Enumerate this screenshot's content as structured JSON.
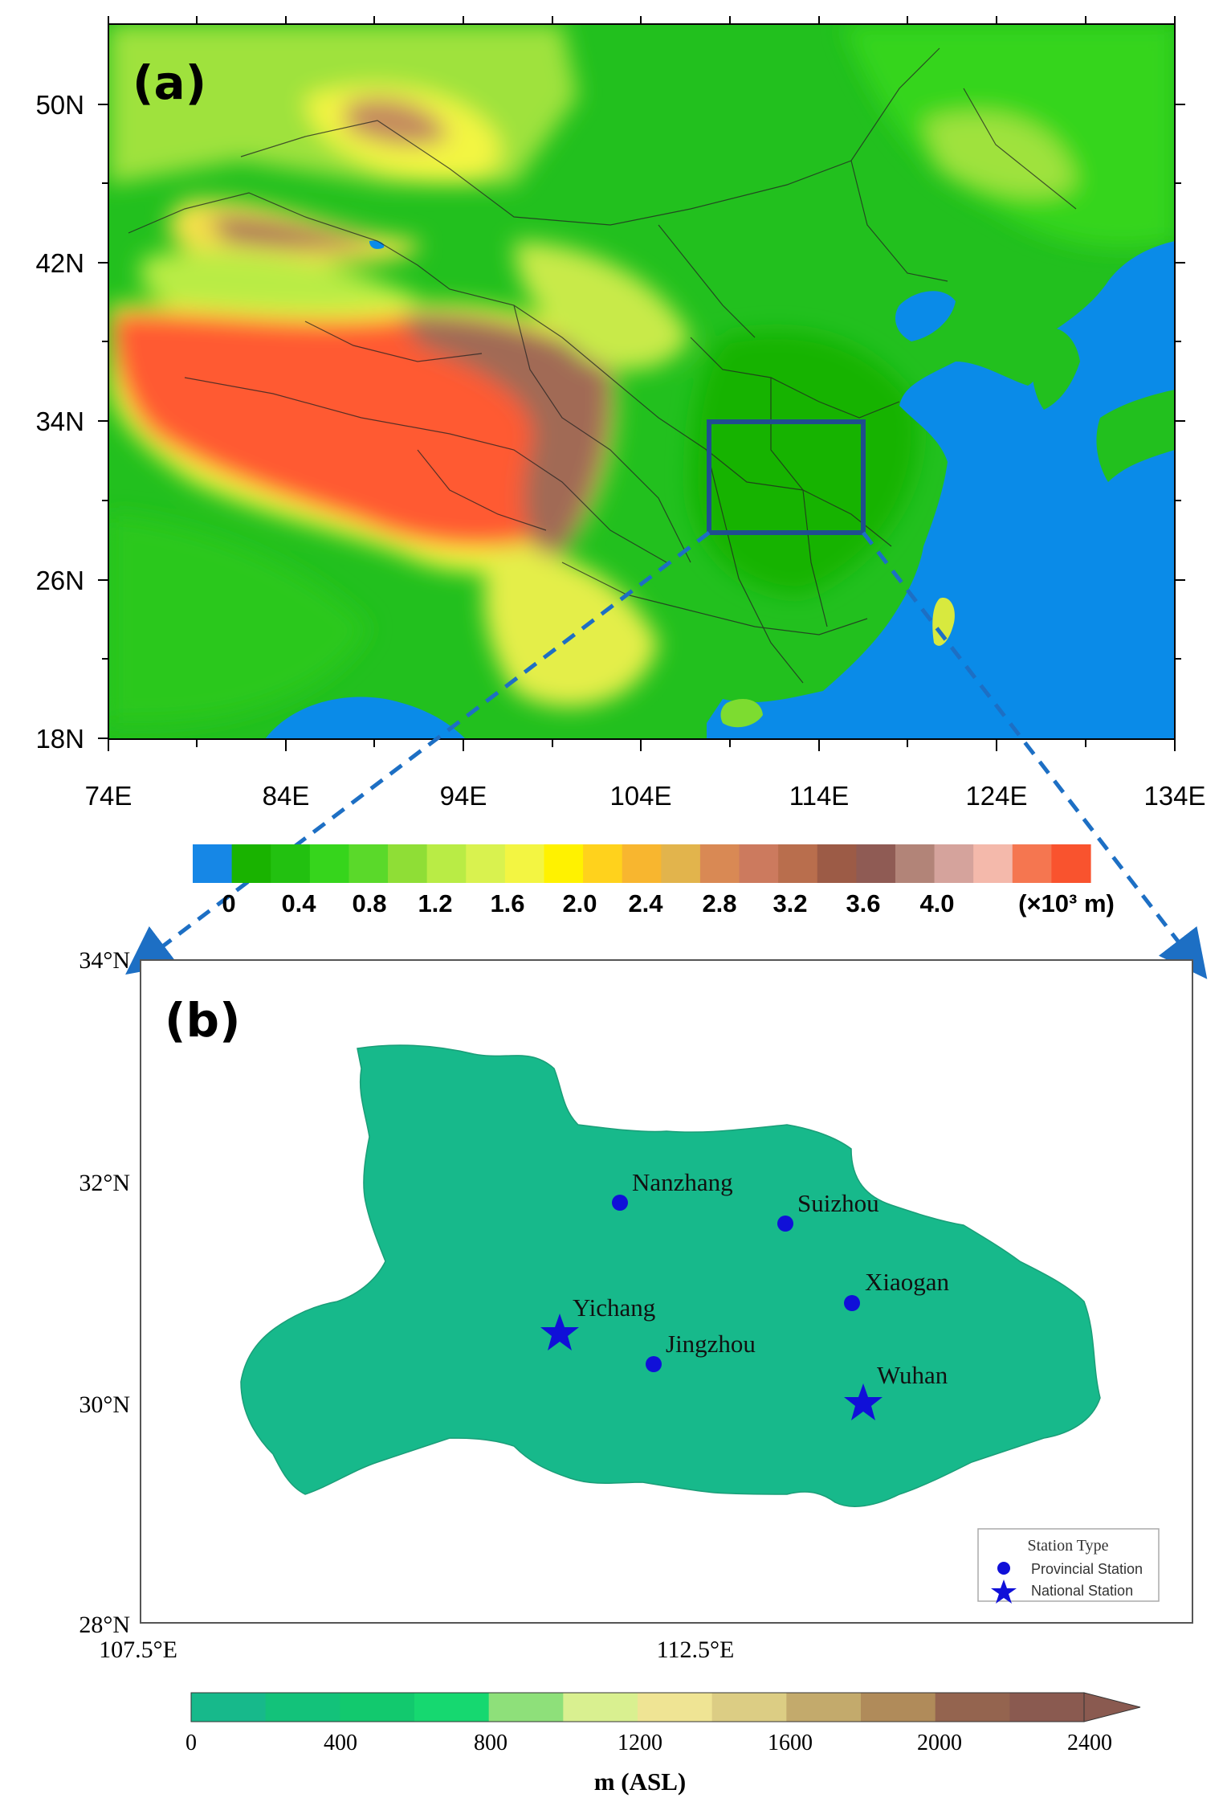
{
  "panel_a": {
    "label": "(a)",
    "x_ticks": [
      "74E",
      "84E",
      "94E",
      "104E",
      "114E",
      "124E",
      "134E"
    ],
    "y_ticks": [
      "50N",
      "42N",
      "34N",
      "26N",
      "18N"
    ],
    "colors": {
      "ocean": "#0a8be8",
      "lowland": "#22c01e",
      "plateau": "#ff5a33",
      "box": "#1f4e8f"
    }
  },
  "colorbar_a": {
    "tick_labels": [
      "0",
      "0.4",
      "0.8",
      "1.2",
      "1.6",
      "2.0",
      "2.4",
      "2.8",
      "3.2",
      "3.6",
      "4.0"
    ],
    "unit": "(×10³ m)",
    "colors": [
      "#1687e6",
      "#19b300",
      "#22c110",
      "#36d51c",
      "#5ad92a",
      "#8fde36",
      "#b9ec45",
      "#d9f24f",
      "#f3f542",
      "#fff200",
      "#ffd21c",
      "#f8b62f",
      "#e2b44c",
      "#d98954",
      "#cc7a5e",
      "#b96e4d",
      "#9c5b46",
      "#8f5b54",
      "#b28478",
      "#d5a39c",
      "#f4b9ab",
      "#f57650",
      "#f9532e"
    ]
  },
  "panel_b": {
    "label": "(b)",
    "x_ticks": [
      "107.5°E",
      "112.5°E"
    ],
    "y_ticks": [
      "34°N",
      "32°N",
      "30°N",
      "28°N"
    ],
    "stations": [
      {
        "name": "Nanzhang",
        "type": "provincial"
      },
      {
        "name": "Suizhou",
        "type": "provincial"
      },
      {
        "name": "Xiaogan",
        "type": "provincial"
      },
      {
        "name": "Yichang",
        "type": "national"
      },
      {
        "name": "Jingzhou",
        "type": "provincial"
      },
      {
        "name": "Wuhan",
        "type": "national"
      }
    ],
    "legend": {
      "title": "Station Type",
      "items": [
        "Provincial Station",
        "National Station"
      ]
    },
    "station_color": "#1010d8"
  },
  "colorbar_b": {
    "tick_labels": [
      "0",
      "400",
      "800",
      "1200",
      "1600",
      "2000",
      "2400"
    ],
    "title": "m (ASL)",
    "colors": [
      "#17b98b",
      "#13c27a",
      "#12c96e",
      "#16d870",
      "#8ee07a",
      "#d9f090",
      "#efe494",
      "#dccd84",
      "#c3aa6c",
      "#b08b5a",
      "#94644f",
      "#8a5a50"
    ]
  }
}
